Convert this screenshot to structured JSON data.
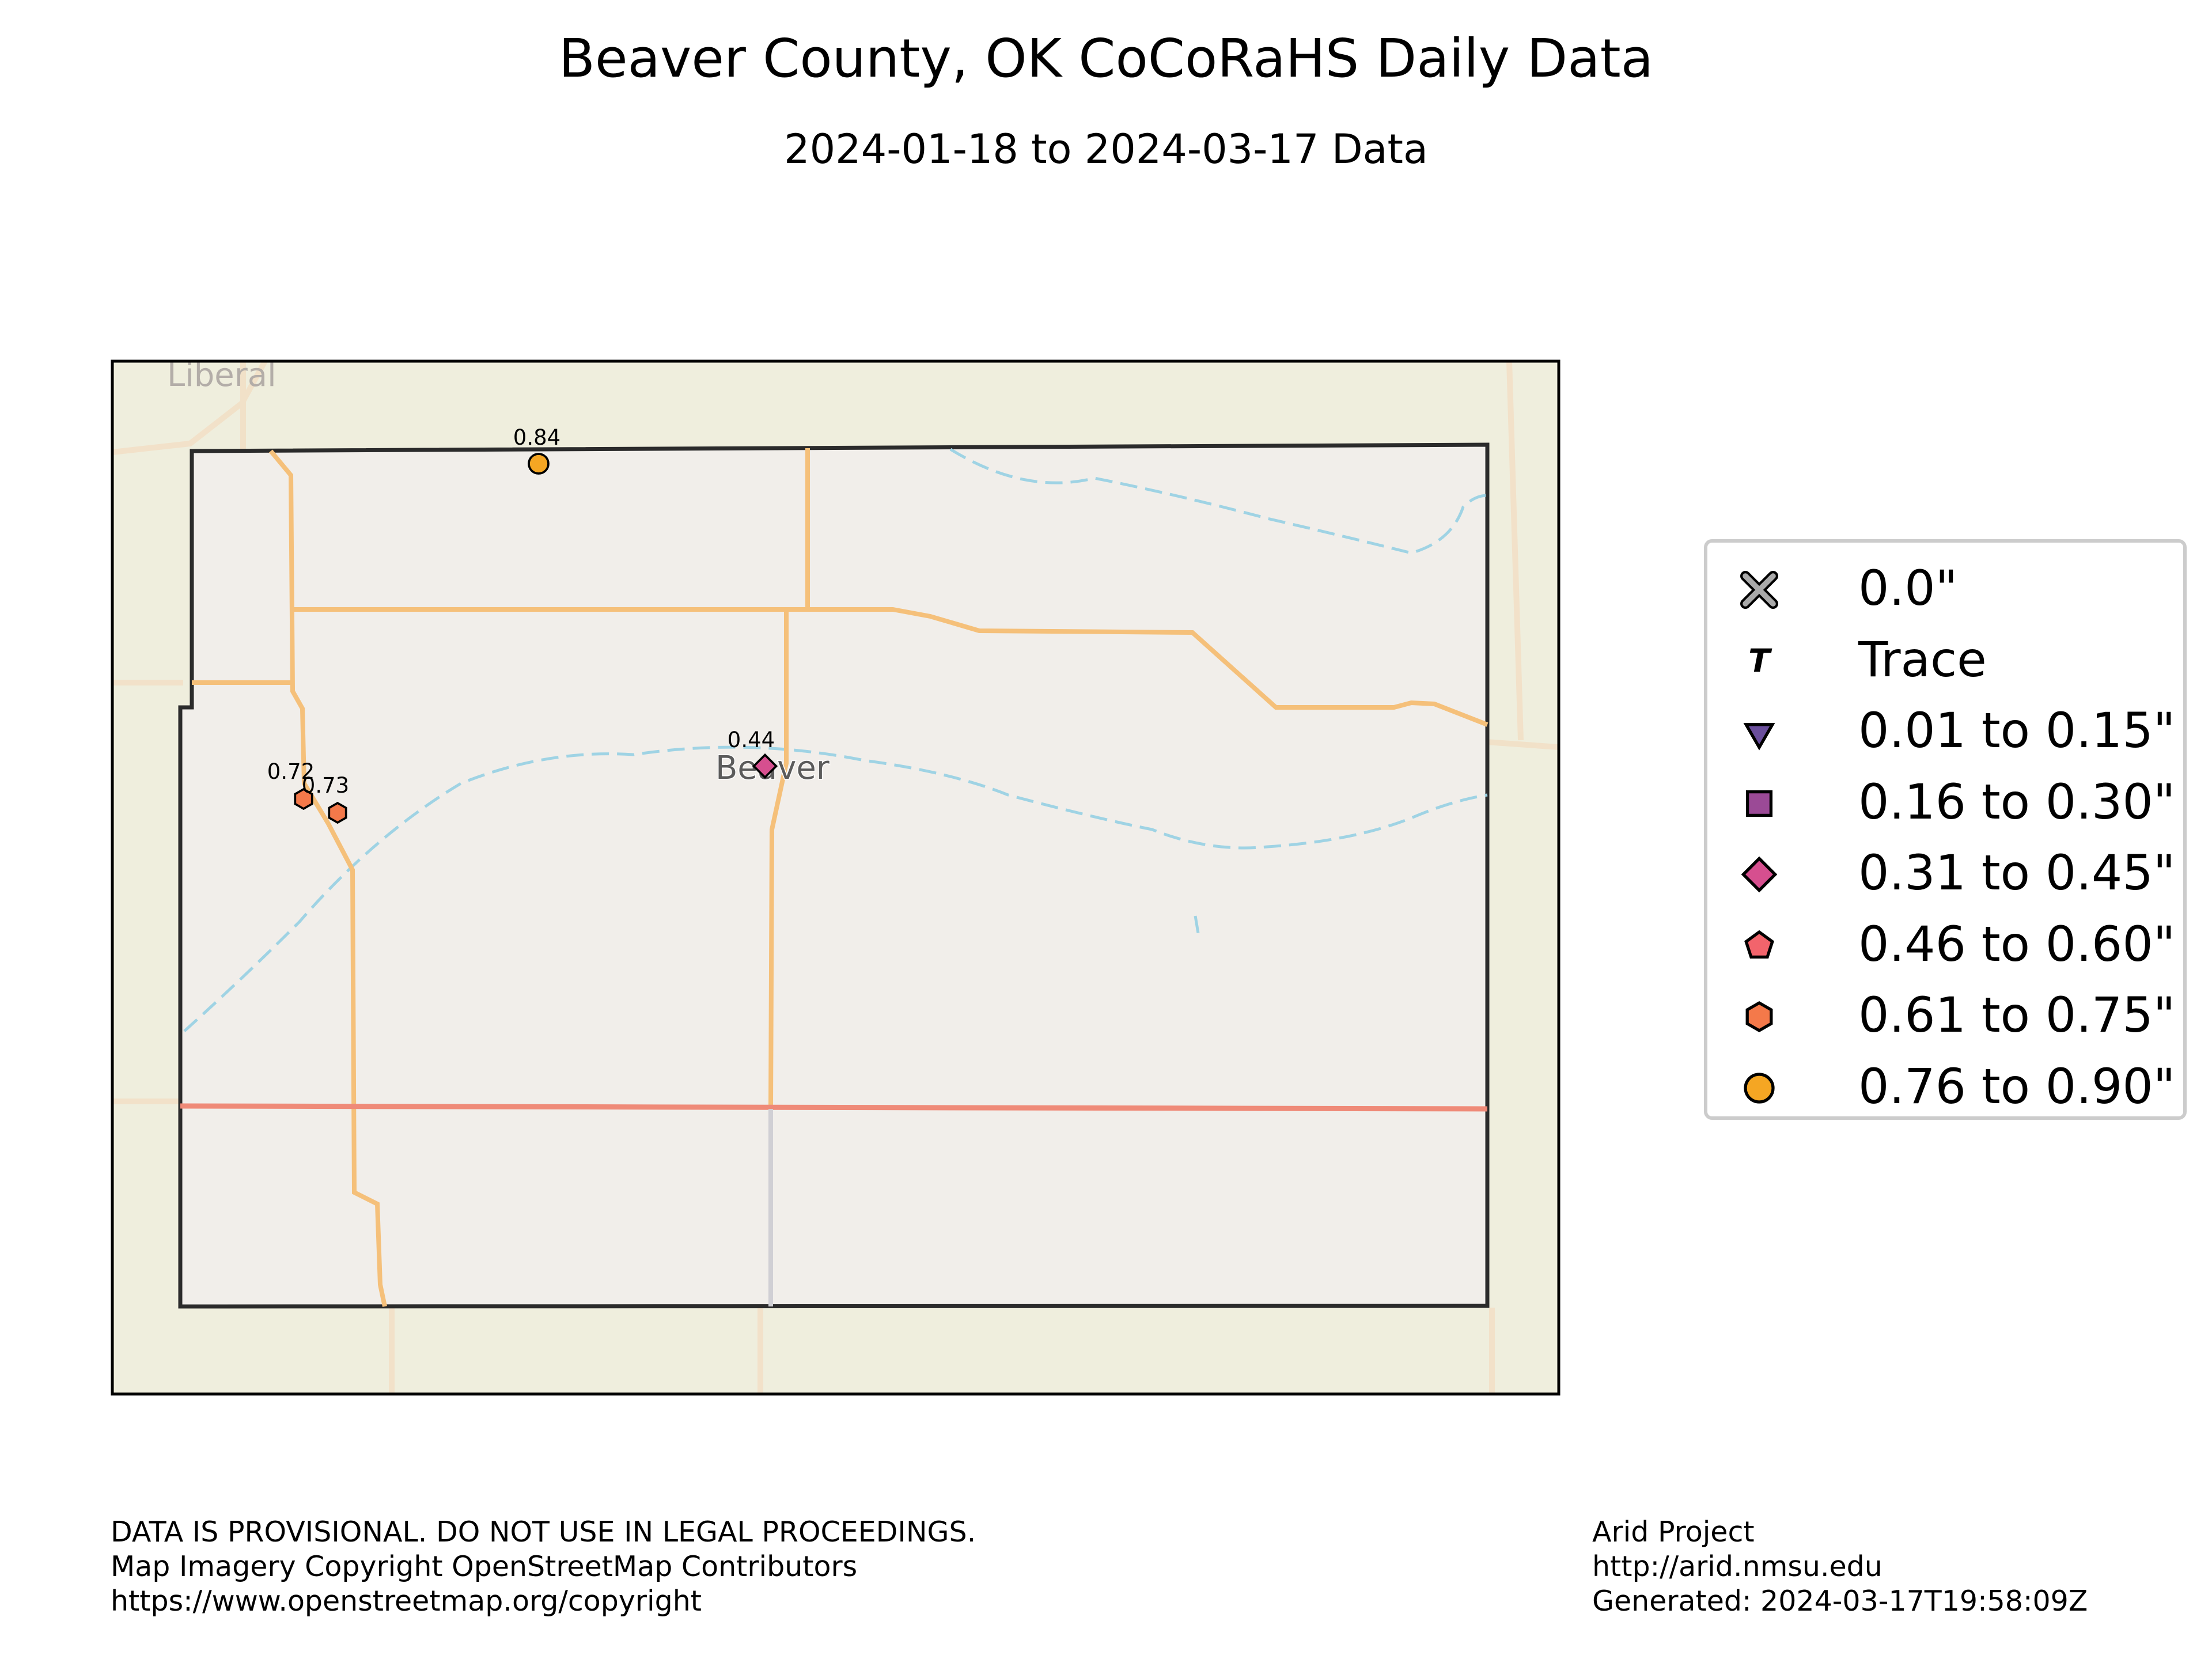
{
  "title": "Beaver County, OK CoCoRaHS Daily Data",
  "subtitle": "2024-01-18 to 2024-03-17 Data",
  "map": {
    "basemap_labels": {
      "city_liberal": "Liberal",
      "city_beaver": "Beaver"
    },
    "colors": {
      "land": "#efeedd",
      "county_fill": "#f1eeea",
      "roads": "#f5c07a",
      "highway": "#ef8a78",
      "water": "#9fd3e4",
      "border": "#2b2b2b"
    },
    "stations": [
      {
        "label": "0.84",
        "value": 0.84,
        "marker": "circle",
        "color": "#f5a623"
      },
      {
        "label": "0.44",
        "value": 0.44,
        "marker": "diamond",
        "color": "#d64f8f"
      },
      {
        "label": "0.72",
        "value": 0.72,
        "marker": "hexagon",
        "color": "#f4794a"
      },
      {
        "label": "0.73",
        "value": 0.73,
        "marker": "hexagon",
        "color": "#f4794a"
      }
    ]
  },
  "legend": [
    {
      "label": "0.0\"",
      "marker": "x",
      "color": "#aaaaaa"
    },
    {
      "label": "Trace",
      "marker": "T",
      "color": "#000000"
    },
    {
      "label": "0.01 to 0.15\"",
      "marker": "triangle-down",
      "color": "#6a4e9c"
    },
    {
      "label": "0.16 to 0.30\"",
      "marker": "square",
      "color": "#9b4a96"
    },
    {
      "label": "0.31 to 0.45\"",
      "marker": "diamond",
      "color": "#d64f8f"
    },
    {
      "label": "0.46 to 0.60\"",
      "marker": "pentagon",
      "color": "#f2646c"
    },
    {
      "label": "0.61 to 0.75\"",
      "marker": "hexagon",
      "color": "#f4794a"
    },
    {
      "label": "0.76 to 0.90\"",
      "marker": "circle",
      "color": "#f5a623"
    }
  ],
  "footer": {
    "left_line1": "DATA IS PROVISIONAL. DO NOT USE IN LEGAL PROCEEDINGS.",
    "left_line2": "Map Imagery Copyright OpenStreetMap Contributors",
    "left_line3": "https://www.openstreetmap.org/copyright",
    "right_line1": "Arid Project",
    "right_line2": "http://arid.nmsu.edu",
    "right_line3": "Generated: 2024-03-17T19:58:09Z"
  }
}
